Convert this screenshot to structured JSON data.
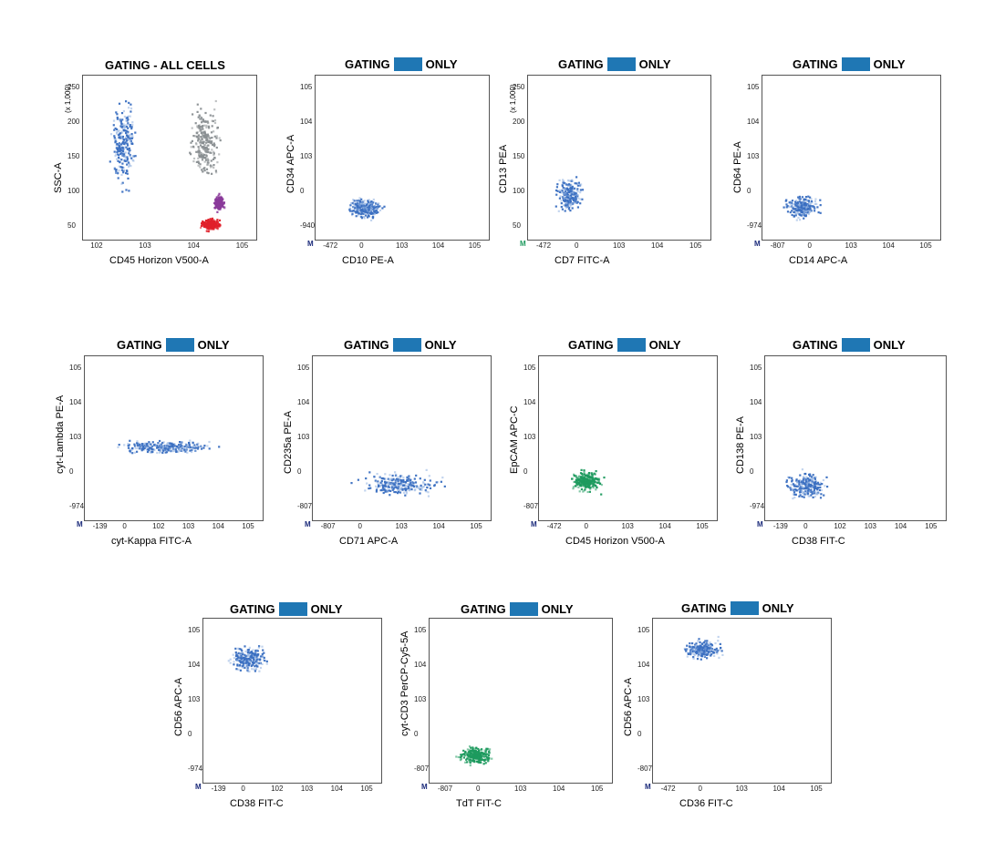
{
  "colors": {
    "swatch": "#1f77b4",
    "population_blue": "#3a6fc1",
    "population_light": "#8fb0e0",
    "population_green": "#1e9a5e",
    "grey": "#8a8f92",
    "red": "#e0202a",
    "purple": "#8a3a9a"
  },
  "chart_data": [
    {
      "type": "scatter",
      "title": "GATING - ALL CELLS",
      "xlabel": "CD45 Horizon V500-A",
      "ylabel": "SSC-A",
      "y_unit_note": "(x 1,000)",
      "x_ticks": [
        "10^2",
        "10^3",
        "10^4",
        "10^5"
      ],
      "y_ticks": [
        "50",
        "100",
        "150",
        "200",
        "250"
      ],
      "m_label": "",
      "populations": [
        {
          "color": "blue",
          "cx": 0.23,
          "cy": 0.6,
          "rx": 0.1,
          "ry": 0.35
        },
        {
          "color": "grey",
          "cx": 0.7,
          "cy": 0.6,
          "rx": 0.12,
          "ry": 0.3
        },
        {
          "color": "red",
          "cx": 0.73,
          "cy": 0.1,
          "rx": 0.08,
          "ry": 0.05
        },
        {
          "color": "purple",
          "cx": 0.78,
          "cy": 0.23,
          "rx": 0.04,
          "ry": 0.06
        }
      ]
    },
    {
      "type": "scatter",
      "title_left": "GATING",
      "title_right": "ONLY",
      "xlabel": "CD10 PE-A",
      "ylabel": "CD34 APC-A",
      "x_ticks": [
        "-472",
        "0",
        "10^3",
        "10^4",
        "10^5"
      ],
      "y_ticks": [
        "-940",
        "0",
        "10^3",
        "10^4",
        "10^5"
      ],
      "m_label": "M",
      "populations": [
        {
          "color": "blue",
          "cx": 0.28,
          "cy": 0.2,
          "rx": 0.14,
          "ry": 0.09
        }
      ]
    },
    {
      "type": "scatter",
      "title_left": "GATING",
      "title_right": "ONLY",
      "xlabel": "CD7 FITC-A",
      "ylabel": "CD13 PEA",
      "y_unit_note": "(x 1,000)",
      "x_ticks": [
        "-472",
        "0",
        "10^3",
        "10^4",
        "10^5"
      ],
      "y_ticks": [
        "50",
        "100",
        "150",
        "200",
        "250"
      ],
      "m_label": "M",
      "populations": [
        {
          "color": "blue",
          "cx": 0.22,
          "cy": 0.28,
          "rx": 0.1,
          "ry": 0.14
        }
      ]
    },
    {
      "type": "scatter",
      "title_left": "GATING",
      "title_right": "ONLY",
      "xlabel": "CD14 APC-A",
      "ylabel": "CD64 PE-A",
      "x_ticks": [
        "-807",
        "0",
        "10^3",
        "10^4",
        "10^5"
      ],
      "y_ticks": [
        "-974",
        "0",
        "10^3",
        "10^4",
        "10^5"
      ],
      "m_label": "M",
      "populations": [
        {
          "color": "blue",
          "cx": 0.22,
          "cy": 0.2,
          "rx": 0.14,
          "ry": 0.1
        }
      ]
    },
    {
      "type": "scatter",
      "title_left": "GATING",
      "title_right": "ONLY",
      "xlabel": "cyt-Kappa FITC-A",
      "ylabel": "cyt-Lambda PE-A",
      "x_ticks": [
        "-139",
        "0",
        "10^2",
        "10^3",
        "10^4",
        "10^5"
      ],
      "y_ticks": [
        "-974",
        "0",
        "10^3",
        "10^4",
        "10^5"
      ],
      "m_label": "M",
      "populations": [
        {
          "color": "blue",
          "cx": 0.45,
          "cy": 0.45,
          "rx": 0.4,
          "ry": 0.06
        }
      ]
    },
    {
      "type": "scatter",
      "title_left": "GATING",
      "title_right": "ONLY",
      "xlabel": "CD71 APC-A",
      "ylabel": "CD235a PE-A",
      "x_ticks": [
        "-807",
        "0",
        "10^3",
        "10^4",
        "10^5"
      ],
      "y_ticks": [
        "-807",
        "0",
        "10^3",
        "10^4",
        "10^5"
      ],
      "m_label": "M",
      "populations": [
        {
          "color": "blue",
          "cx": 0.48,
          "cy": 0.22,
          "rx": 0.33,
          "ry": 0.1
        }
      ]
    },
    {
      "type": "scatter",
      "title_left": "GATING",
      "title_right": "ONLY",
      "xlabel": "CD45 Horizon V500-A",
      "ylabel": "EpCAM APC-C",
      "x_ticks": [
        "-472",
        "0",
        "10^3",
        "10^4",
        "10^5"
      ],
      "y_ticks": [
        "-807",
        "0",
        "10^3",
        "10^4",
        "10^5"
      ],
      "m_label": "M",
      "populations": [
        {
          "color": "green",
          "cx": 0.26,
          "cy": 0.24,
          "rx": 0.12,
          "ry": 0.09
        }
      ]
    },
    {
      "type": "scatter",
      "title_left": "GATING",
      "title_right": "ONLY",
      "xlabel": "CD38 FIT-C",
      "ylabel": "CD138 PE-A",
      "x_ticks": [
        "-139",
        "0",
        "10^2",
        "10^3",
        "10^4",
        "10^5"
      ],
      "y_ticks": [
        "-974",
        "0",
        "10^3",
        "10^4",
        "10^5"
      ],
      "m_label": "M",
      "populations": [
        {
          "color": "blue",
          "cx": 0.22,
          "cy": 0.22,
          "rx": 0.15,
          "ry": 0.12
        }
      ]
    },
    {
      "type": "scatter",
      "title_left": "GATING",
      "title_right": "ONLY",
      "xlabel": "CD38 FIT-C",
      "ylabel": "CD56 APC-A",
      "x_ticks": [
        "-139",
        "0",
        "10^2",
        "10^3",
        "10^4",
        "10^5"
      ],
      "y_ticks": [
        "-974",
        "0",
        "10^3",
        "10^4",
        "10^5"
      ],
      "m_label": "M",
      "populations": [
        {
          "color": "blue",
          "cx": 0.25,
          "cy": 0.76,
          "rx": 0.15,
          "ry": 0.1
        }
      ]
    },
    {
      "type": "scatter",
      "title_left": "GATING",
      "title_right": "ONLY",
      "xlabel": "TdT FIT-C",
      "ylabel": "cyt-CD3 PerCP-Cy5-5A",
      "x_ticks": [
        "-807",
        "0",
        "10^3",
        "10^4",
        "10^5"
      ],
      "y_ticks": [
        "-807",
        "0",
        "10^3",
        "10^4",
        "10^5"
      ],
      "m_label": "M",
      "populations": [
        {
          "color": "green",
          "cx": 0.25,
          "cy": 0.17,
          "rx": 0.13,
          "ry": 0.08
        }
      ]
    },
    {
      "type": "scatter",
      "title_left": "GATING",
      "title_right": "ONLY",
      "xlabel": "CD36 FIT-C",
      "ylabel": "CD56 APC-A",
      "x_ticks": [
        "-472",
        "0",
        "10^3",
        "10^4",
        "10^5"
      ],
      "y_ticks": [
        "-807",
        "0",
        "10^3",
        "10^4",
        "10^5"
      ],
      "m_label": "M",
      "populations": [
        {
          "color": "blue",
          "cx": 0.27,
          "cy": 0.82,
          "rx": 0.15,
          "ry": 0.08
        }
      ]
    }
  ]
}
